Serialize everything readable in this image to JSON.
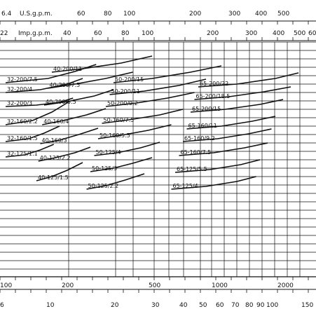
{
  "chart_data": {
    "type": "line",
    "title": "",
    "x_scale": "log",
    "y_scale": "linear",
    "grid": true,
    "legend": "none",
    "units": {
      "top_row_1": "U.S.g.p.m.",
      "top_row_2": "Imp.g.p.m."
    },
    "axes": {
      "top_row_1": {
        "label": "U.S.g.p.m.",
        "ticks": [
          "6.4",
          "60",
          "80",
          "100",
          "200",
          "300",
          "400",
          "500"
        ]
      },
      "top_row_2": {
        "label": "Imp.g.p.m.",
        "ticks": [
          "22",
          "40",
          "60",
          "80",
          "100",
          "200",
          "300",
          "400",
          "500",
          "600"
        ]
      },
      "bottom_row_1": {
        "ticks": [
          "100",
          "200",
          "500",
          "1000",
          "2000"
        ]
      },
      "bottom_row_2": {
        "ticks": [
          "6",
          "10",
          "20",
          "30",
          "40",
          "50",
          "60",
          "70",
          "80",
          "90",
          "100",
          "150"
        ]
      }
    },
    "series": [
      {
        "name": "32-200/7.5",
        "x": [
          0,
          110,
          180,
          235
        ],
        "y": [
          118,
          112,
          102,
          92
        ]
      },
      {
        "name": "32-200/4",
        "x": [
          0,
          90,
          160,
          200
        ],
        "y": [
          132,
          128,
          120,
          112
        ]
      },
      {
        "name": "32-200/3",
        "x": [
          0,
          80,
          140,
          175
        ],
        "y": [
          152,
          150,
          146,
          140
        ]
      },
      {
        "name": "32-160/2.2",
        "x": [
          0,
          70,
          120,
          165
        ],
        "y": [
          178,
          172,
          160,
          145
        ]
      },
      {
        "name": "32-160/1.5",
        "x": [
          0,
          60,
          100,
          140
        ],
        "y": [
          202,
          198,
          190,
          180
        ]
      },
      {
        "name": "32-125/1.1",
        "x": [
          0,
          50,
          90,
          125
        ],
        "y": [
          224,
          221,
          214,
          206
        ]
      },
      {
        "name": "40-200/11",
        "x": [
          120,
          200,
          300,
          380
        ],
        "y": [
          103,
          98,
          90,
          80
        ]
      },
      {
        "name": "40-200/7.5",
        "x": [
          110,
          180,
          260,
          330
        ],
        "y": [
          126,
          120,
          112,
          103
        ]
      },
      {
        "name": "40-200/5.5",
        "x": [
          100,
          160,
          230,
          280
        ],
        "y": [
          150,
          145,
          137,
          128
        ]
      },
      {
        "name": "40-160/4",
        "x": [
          95,
          150,
          210,
          260
        ],
        "y": [
          178,
          172,
          164,
          155
        ]
      },
      {
        "name": "40-160/3",
        "x": [
          90,
          140,
          190,
          240
        ],
        "y": [
          205,
          200,
          192,
          183
        ]
      },
      {
        "name": "40-125/2.2",
        "x": [
          85,
          130,
          180,
          220
        ],
        "y": [
          230,
          225,
          218,
          210
        ]
      },
      {
        "name": "40-125/1.5",
        "x": [
          80,
          120,
          160,
          200
        ],
        "y": [
          258,
          252,
          243,
          232
        ]
      },
      {
        "name": "50-200/15",
        "x": [
          280,
          380,
          480,
          560
        ],
        "y": [
          118,
          112,
          103,
          94
        ]
      },
      {
        "name": "50-200/11",
        "x": [
          270,
          360,
          450,
          520
        ],
        "y": [
          135,
          130,
          122,
          113
        ]
      },
      {
        "name": "50-200/9.2",
        "x": [
          260,
          340,
          420,
          490
        ],
        "y": [
          152,
          147,
          140,
          132
        ]
      },
      {
        "name": "50-160/7.5",
        "x": [
          250,
          320,
          400,
          460
        ],
        "y": [
          176,
          171,
          164,
          156
        ]
      },
      {
        "name": "50-160/5.5",
        "x": [
          240,
          300,
          370,
          430
        ],
        "y": [
          198,
          193,
          186,
          178
        ]
      },
      {
        "name": "50-125/4",
        "x": [
          230,
          290,
          350,
          400
        ],
        "y": [
          222,
          218,
          211,
          203
        ]
      },
      {
        "name": "50-125/3",
        "x": [
          220,
          280,
          330,
          380
        ],
        "y": [
          245,
          240,
          233,
          225
        ]
      },
      {
        "name": "50-125/2.2",
        "x": [
          210,
          260,
          310,
          360
        ],
        "y": [
          270,
          265,
          257,
          248
        ]
      },
      {
        "name": "65-200/22",
        "x": [
          500,
          600,
          700,
          760
        ],
        "y": [
          124,
          120,
          112,
          104
        ]
      },
      {
        "name": "65-200/18.5",
        "x": [
          490,
          580,
          670,
          740
        ],
        "y": [
          142,
          138,
          131,
          124
        ]
      },
      {
        "name": "65-200/15",
        "x": [
          480,
          570,
          660,
          720
        ],
        "y": [
          160,
          156,
          149,
          142
        ]
      },
      {
        "name": "65-160/11",
        "x": [
          470,
          560,
          640,
          700
        ],
        "y": [
          184,
          180,
          173,
          166
        ]
      },
      {
        "name": "65-160/9.2",
        "x": [
          460,
          550,
          630,
          690
        ],
        "y": [
          202,
          198,
          191,
          184
        ]
      },
      {
        "name": "65-160/7.5",
        "x": [
          450,
          540,
          620,
          680
        ],
        "y": [
          222,
          218,
          211,
          204
        ]
      },
      {
        "name": "65-125/5.5",
        "x": [
          440,
          530,
          610,
          660
        ],
        "y": [
          246,
          242,
          235,
          228
        ]
      },
      {
        "name": "65-125/4",
        "x": [
          430,
          520,
          600,
          650
        ],
        "y": [
          270,
          266,
          259,
          252
        ]
      }
    ]
  }
}
